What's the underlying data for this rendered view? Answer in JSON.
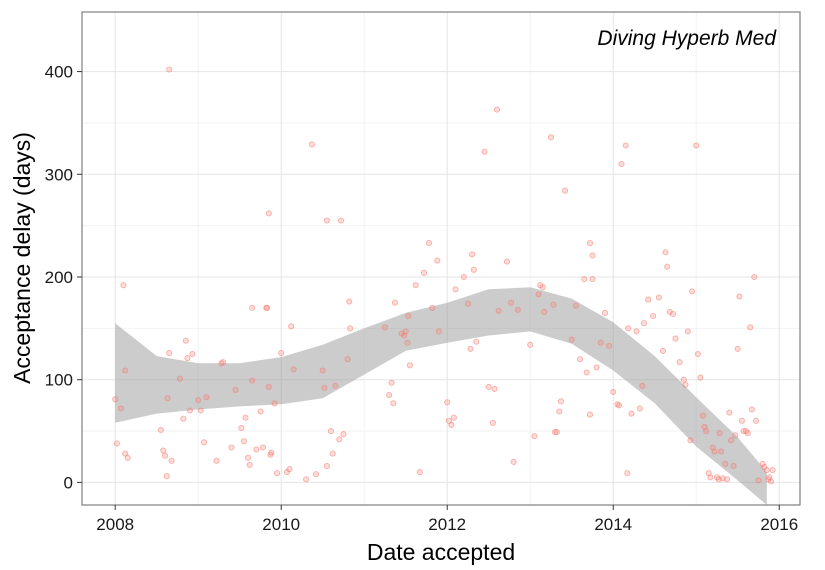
{
  "chart_data": {
    "type": "scatter",
    "title": "",
    "annotation": "Diving Hyperb Med",
    "xlabel": "Date accepted",
    "ylabel": "Acceptance delay (days)",
    "xlim": [
      2007.6,
      2016.25
    ],
    "ylim": [
      -22,
      458
    ],
    "x_ticks": [
      2008,
      2010,
      2012,
      2014,
      2016
    ],
    "y_ticks": [
      0,
      100,
      200,
      300,
      400
    ],
    "minor_x_ticks": [
      2009,
      2011,
      2013,
      2015
    ],
    "minor_y_ticks": [
      50,
      150,
      250,
      350
    ],
    "grid": true,
    "point_color": "#f8766d",
    "smooth_color": "#aaaaaa",
    "series": [
      {
        "values": [
          [
            2008.0,
            81
          ],
          [
            2008.02,
            38
          ],
          [
            2008.07,
            72
          ],
          [
            2008.1,
            192
          ],
          [
            2008.12,
            109
          ],
          [
            2008.12,
            28
          ],
          [
            2008.15,
            24
          ],
          [
            2008.55,
            51
          ],
          [
            2008.58,
            31
          ],
          [
            2008.6,
            26
          ],
          [
            2008.62,
            6
          ],
          [
            2008.63,
            82
          ],
          [
            2008.65,
            126
          ],
          [
            2008.65,
            402
          ],
          [
            2008.68,
            21
          ],
          [
            2008.78,
            101
          ],
          [
            2008.82,
            62
          ],
          [
            2008.85,
            138
          ],
          [
            2008.87,
            121
          ],
          [
            2008.9,
            70
          ],
          [
            2008.93,
            125
          ],
          [
            2009.0,
            80
          ],
          [
            2009.03,
            70
          ],
          [
            2009.07,
            39
          ],
          [
            2009.1,
            83
          ],
          [
            2009.22,
            21
          ],
          [
            2009.28,
            116
          ],
          [
            2009.3,
            117
          ],
          [
            2009.4,
            34
          ],
          [
            2009.45,
            90
          ],
          [
            2009.52,
            53
          ],
          [
            2009.55,
            40
          ],
          [
            2009.57,
            63
          ],
          [
            2009.6,
            24
          ],
          [
            2009.62,
            17
          ],
          [
            2009.65,
            170
          ],
          [
            2009.65,
            99
          ],
          [
            2009.7,
            32
          ],
          [
            2009.75,
            69
          ],
          [
            2009.78,
            34
          ],
          [
            2009.82,
            170
          ],
          [
            2009.83,
            170
          ],
          [
            2009.85,
            93
          ],
          [
            2009.85,
            262
          ],
          [
            2009.87,
            27
          ],
          [
            2009.88,
            29
          ],
          [
            2009.92,
            77
          ],
          [
            2009.95,
            9
          ],
          [
            2010.0,
            126
          ],
          [
            2010.07,
            10
          ],
          [
            2010.1,
            13
          ],
          [
            2010.12,
            152
          ],
          [
            2010.15,
            110
          ],
          [
            2010.3,
            3
          ],
          [
            2010.37,
            329
          ],
          [
            2010.42,
            8
          ],
          [
            2010.5,
            109
          ],
          [
            2010.52,
            92
          ],
          [
            2010.55,
            255
          ],
          [
            2010.55,
            16
          ],
          [
            2010.6,
            50
          ],
          [
            2010.62,
            28
          ],
          [
            2010.65,
            94
          ],
          [
            2010.7,
            42
          ],
          [
            2010.72,
            255
          ],
          [
            2010.75,
            47
          ],
          [
            2010.8,
            120
          ],
          [
            2010.82,
            176
          ],
          [
            2010.83,
            150
          ],
          [
            2011.25,
            151
          ],
          [
            2011.3,
            85
          ],
          [
            2011.33,
            97
          ],
          [
            2011.35,
            77
          ],
          [
            2011.37,
            175
          ],
          [
            2011.45,
            145
          ],
          [
            2011.48,
            143
          ],
          [
            2011.5,
            147
          ],
          [
            2011.52,
            136
          ],
          [
            2011.53,
            162
          ],
          [
            2011.55,
            114
          ],
          [
            2011.62,
            192
          ],
          [
            2011.67,
            10
          ],
          [
            2011.72,
            204
          ],
          [
            2011.78,
            233
          ],
          [
            2011.82,
            170
          ],
          [
            2011.88,
            216
          ],
          [
            2011.9,
            147
          ],
          [
            2012.0,
            78
          ],
          [
            2012.02,
            60
          ],
          [
            2012.05,
            56
          ],
          [
            2012.08,
            63
          ],
          [
            2012.1,
            188
          ],
          [
            2012.2,
            200
          ],
          [
            2012.25,
            174
          ],
          [
            2012.28,
            130
          ],
          [
            2012.3,
            222
          ],
          [
            2012.32,
            207
          ],
          [
            2012.35,
            137
          ],
          [
            2012.45,
            322
          ],
          [
            2012.5,
            93
          ],
          [
            2012.55,
            58
          ],
          [
            2012.57,
            91
          ],
          [
            2012.6,
            363
          ],
          [
            2012.62,
            167
          ],
          [
            2012.72,
            215
          ],
          [
            2012.77,
            175
          ],
          [
            2012.8,
            20
          ],
          [
            2012.85,
            168
          ],
          [
            2013.0,
            134
          ],
          [
            2013.05,
            45
          ],
          [
            2013.1,
            183
          ],
          [
            2013.12,
            192
          ],
          [
            2013.15,
            190
          ],
          [
            2013.17,
            166
          ],
          [
            2013.25,
            336
          ],
          [
            2013.28,
            173
          ],
          [
            2013.3,
            49
          ],
          [
            2013.32,
            49
          ],
          [
            2013.35,
            69
          ],
          [
            2013.37,
            79
          ],
          [
            2013.42,
            284
          ],
          [
            2013.5,
            139
          ],
          [
            2013.55,
            172
          ],
          [
            2013.6,
            120
          ],
          [
            2013.65,
            198
          ],
          [
            2013.68,
            107
          ],
          [
            2013.72,
            233
          ],
          [
            2013.75,
            221
          ],
          [
            2013.72,
            66
          ],
          [
            2013.75,
            198
          ],
          [
            2013.8,
            112
          ],
          [
            2013.85,
            136
          ],
          [
            2013.9,
            165
          ],
          [
            2013.95,
            133
          ],
          [
            2014.0,
            88
          ],
          [
            2014.05,
            76
          ],
          [
            2014.07,
            75
          ],
          [
            2014.1,
            310
          ],
          [
            2014.15,
            328
          ],
          [
            2014.17,
            9
          ],
          [
            2014.18,
            150
          ],
          [
            2014.22,
            67
          ],
          [
            2014.28,
            147
          ],
          [
            2014.32,
            72
          ],
          [
            2014.35,
            94
          ],
          [
            2014.37,
            155
          ],
          [
            2014.42,
            178
          ],
          [
            2014.48,
            162
          ],
          [
            2014.55,
            180
          ],
          [
            2014.6,
            128
          ],
          [
            2014.63,
            224
          ],
          [
            2014.65,
            210
          ],
          [
            2014.68,
            166
          ],
          [
            2014.72,
            164
          ],
          [
            2014.75,
            140
          ],
          [
            2014.8,
            117
          ],
          [
            2014.85,
            100
          ],
          [
            2014.87,
            95
          ],
          [
            2014.9,
            147
          ],
          [
            2014.93,
            41
          ],
          [
            2014.95,
            186
          ],
          [
            2015.0,
            328
          ],
          [
            2015.02,
            125
          ],
          [
            2015.05,
            102
          ],
          [
            2015.08,
            65
          ],
          [
            2015.1,
            54
          ],
          [
            2015.12,
            50
          ],
          [
            2015.15,
            9
          ],
          [
            2015.17,
            5
          ],
          [
            2015.2,
            34
          ],
          [
            2015.22,
            30
          ],
          [
            2015.25,
            5
          ],
          [
            2015.27,
            3
          ],
          [
            2015.28,
            48
          ],
          [
            2015.3,
            30
          ],
          [
            2015.32,
            4
          ],
          [
            2015.35,
            18
          ],
          [
            2015.37,
            3
          ],
          [
            2015.4,
            68
          ],
          [
            2015.42,
            41
          ],
          [
            2015.45,
            16
          ],
          [
            2015.47,
            46
          ],
          [
            2015.5,
            130
          ],
          [
            2015.52,
            181
          ],
          [
            2015.55,
            60
          ],
          [
            2015.57,
            50
          ],
          [
            2015.6,
            50
          ],
          [
            2015.62,
            48
          ],
          [
            2015.65,
            151
          ],
          [
            2015.67,
            71
          ],
          [
            2015.7,
            200
          ],
          [
            2015.72,
            60
          ],
          [
            2015.75,
            2
          ],
          [
            2015.8,
            18
          ],
          [
            2015.82,
            15
          ],
          [
            2015.85,
            12
          ],
          [
            2015.87,
            3
          ],
          [
            2015.88,
            5
          ],
          [
            2015.9,
            1
          ],
          [
            2015.92,
            12
          ]
        ]
      }
    ],
    "smooth_band": {
      "x": [
        2008.0,
        2008.5,
        2009.0,
        2009.5,
        2010.0,
        2010.5,
        2011.0,
        2011.5,
        2012.0,
        2012.5,
        2013.0,
        2013.5,
        2014.0,
        2014.5,
        2015.0,
        2015.5,
        2015.85
      ],
      "upper": [
        155,
        123,
        116,
        116,
        122,
        134,
        150,
        165,
        175,
        188,
        190,
        179,
        156,
        123,
        83,
        44,
        10
      ],
      "lower": [
        58,
        67,
        71,
        74,
        76,
        82,
        105,
        128,
        136,
        143,
        147,
        135,
        109,
        77,
        35,
        2,
        -40
      ]
    }
  }
}
